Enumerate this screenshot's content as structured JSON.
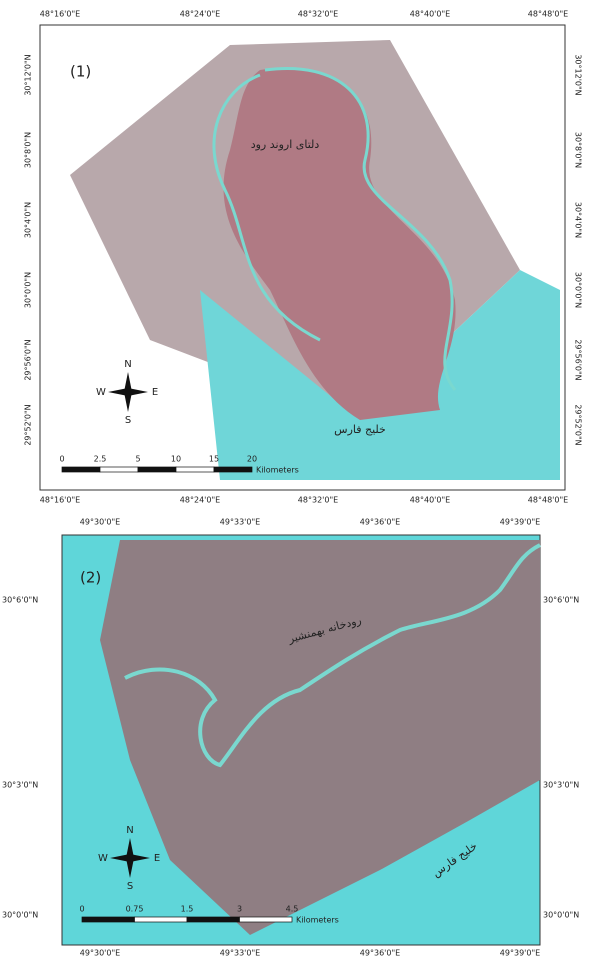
{
  "maps": [
    {
      "label": "(1)",
      "top_ticks": [
        "48°16'0\"E",
        "48°24'0\"E",
        "48°32'0\"E",
        "48°40'0\"E",
        "48°48'0\"E"
      ],
      "bottom_ticks": [
        "48°16'0\"E",
        "48°24'0\"E",
        "48°32'0\"E",
        "48°40'0\"E",
        "48°48'0\"E"
      ],
      "left_ticks": [
        "30°12'0\"N",
        "30°8'0\"N",
        "30°4'0\"N",
        "30°0'0\"N",
        "29°56'0\"N",
        "29°52'0\"N"
      ],
      "right_ticks": [
        "30°12'0\"N",
        "30°8'0\"N",
        "30°4'0\"N",
        "30°0'0\"N",
        "29°56'0\"N",
        "29°52'0\"N"
      ],
      "places": [
        "دلتای اروند رود",
        "خلیج فارس"
      ],
      "scale_labels": [
        "0",
        "2.5",
        "5",
        "10",
        "15",
        "20"
      ],
      "scale_unit": "Kilometers",
      "compass": [
        "N",
        "E",
        "S",
        "W"
      ]
    },
    {
      "label": "(2)",
      "top_ticks": [
        "49°30'0\"E",
        "49°33'0\"E",
        "49°36'0\"E",
        "49°39'0\"E"
      ],
      "bottom_ticks": [
        "49°30'0\"E",
        "49°33'0\"E",
        "49°36'0\"E",
        "49°39'0\"E"
      ],
      "left_ticks": [
        "30°6'0\"N",
        "30°3'0\"N",
        "30°0'0\"N"
      ],
      "right_ticks": [
        "30°6'0\"N",
        "30°3'0\"N",
        "30°0'0\"N"
      ],
      "places": [
        "رودخانه بهمنشیر",
        "خلیج فارس"
      ],
      "scale_labels": [
        "0",
        "0.75",
        "1.5",
        "3",
        "4.5"
      ],
      "scale_unit": "Kilometers",
      "compass": [
        "N",
        "E",
        "S",
        "W"
      ]
    }
  ]
}
